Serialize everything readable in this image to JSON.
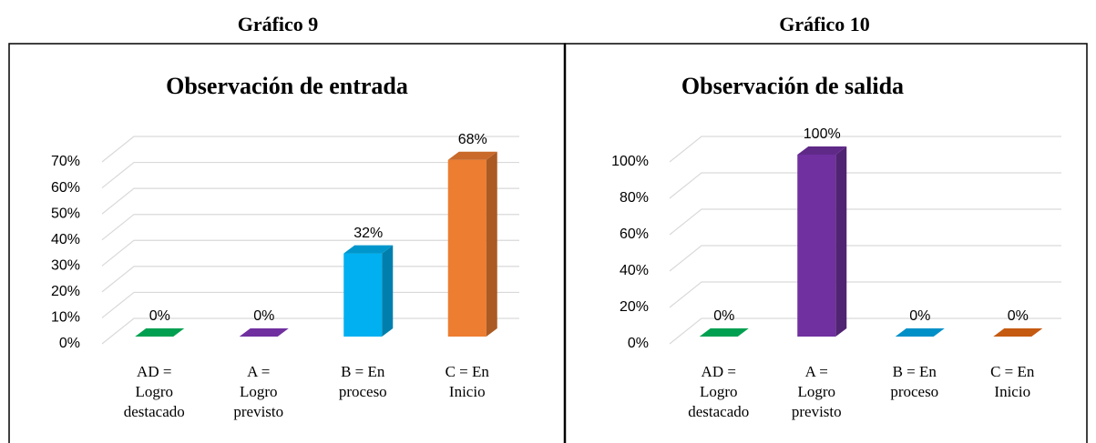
{
  "headings": [
    "Gráfico 9",
    "Gráfico 10"
  ],
  "chart_data": [
    {
      "type": "bar3d",
      "title": "Observación de entrada",
      "categories": [
        [
          "AD =",
          "Logro",
          "destacado"
        ],
        [
          "A =",
          "Logro",
          "previsto"
        ],
        [
          "B = En",
          "proceso"
        ],
        [
          "C = En",
          "Inicio"
        ]
      ],
      "values": [
        0,
        0,
        32,
        68
      ],
      "value_labels": [
        "0%",
        "0%",
        "32%",
        "68%"
      ],
      "colors": [
        "#00a050",
        "#7030a0",
        "#00b0f0",
        "#ed7d31"
      ],
      "ylim": [
        0,
        70
      ],
      "yticks": [
        {
          "value": 0,
          "label": "0%"
        },
        {
          "value": 10,
          "label": "10%"
        },
        {
          "value": 20,
          "label": "20%"
        },
        {
          "value": 30,
          "label": "30%"
        },
        {
          "value": 40,
          "label": "40%"
        },
        {
          "value": 50,
          "label": "50%"
        },
        {
          "value": 60,
          "label": "60%"
        },
        {
          "value": 70,
          "label": "70%"
        }
      ],
      "grid": true
    },
    {
      "type": "bar3d",
      "title": "Observación de salida",
      "categories": [
        [
          "AD =",
          "Logro",
          "destacado"
        ],
        [
          "A =",
          "Logro",
          "previsto"
        ],
        [
          "B = En",
          "proceso"
        ],
        [
          "C = En",
          "Inicio"
        ]
      ],
      "values": [
        0,
        100,
        0,
        0
      ],
      "value_labels": [
        "0%",
        "100%",
        "0%",
        "0%"
      ],
      "colors": [
        "#00a050",
        "#7030a0",
        "#0090c8",
        "#c55a11"
      ],
      "ylim": [
        0,
        100
      ],
      "yticks": [
        {
          "value": 0,
          "label": "0%"
        },
        {
          "value": 20,
          "label": "20%"
        },
        {
          "value": 40,
          "label": "40%"
        },
        {
          "value": 60,
          "label": "60%"
        },
        {
          "value": 80,
          "label": "80%"
        },
        {
          "value": 100,
          "label": "100%"
        }
      ],
      "grid": true
    }
  ]
}
